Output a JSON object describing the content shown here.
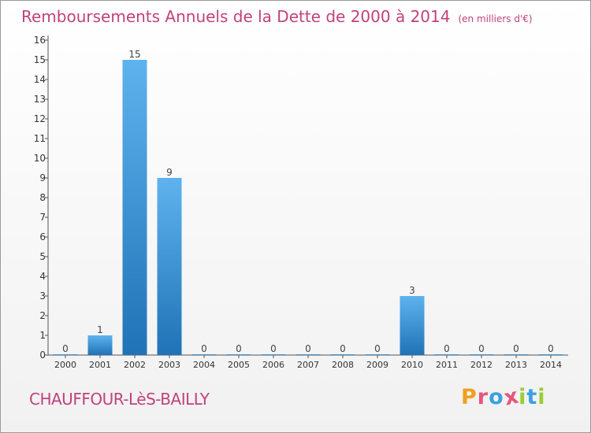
{
  "header": {
    "title": "Remboursements Annuels de la Dette de 2000 à 2014",
    "unit_note": "(en milliers d'€)"
  },
  "footer": {
    "city": "CHAUFFOUR-LèS-BAILLY",
    "logo_letters": [
      "P",
      "r",
      "o",
      "x",
      "i",
      "t",
      "i"
    ]
  },
  "colors": {
    "title": "#c0427d",
    "bar_top": "#5eb3ee",
    "bar_bottom": "#1f73b6",
    "axis": "#555555",
    "logo": [
      "#f0a020",
      "#e8547a",
      "#3aa0e0",
      "#e8547a",
      "#9acd32",
      "#3aa0e0",
      "#9acd32"
    ]
  },
  "chart_data": {
    "type": "bar",
    "categories": [
      "2000",
      "2001",
      "2002",
      "2003",
      "2004",
      "2005",
      "2006",
      "2007",
      "2008",
      "2009",
      "2010",
      "2011",
      "2012",
      "2013",
      "2014"
    ],
    "values": [
      0,
      1,
      15,
      9,
      0,
      0,
      0,
      0,
      0,
      0,
      3,
      0,
      0,
      0,
      0
    ],
    "data_labels": [
      "0",
      "1",
      "15",
      "9",
      "0",
      "0",
      "0",
      "0",
      "0",
      "0",
      "3",
      "0",
      "0",
      "0",
      "0"
    ],
    "y_ticks": [
      "0",
      "1",
      "2",
      "3",
      "4",
      "5",
      "6",
      "7",
      "8",
      "9",
      "10",
      "11",
      "12",
      "13",
      "14",
      "15",
      "16"
    ],
    "ylim": [
      0,
      16
    ],
    "grid": false,
    "legend": "none"
  }
}
